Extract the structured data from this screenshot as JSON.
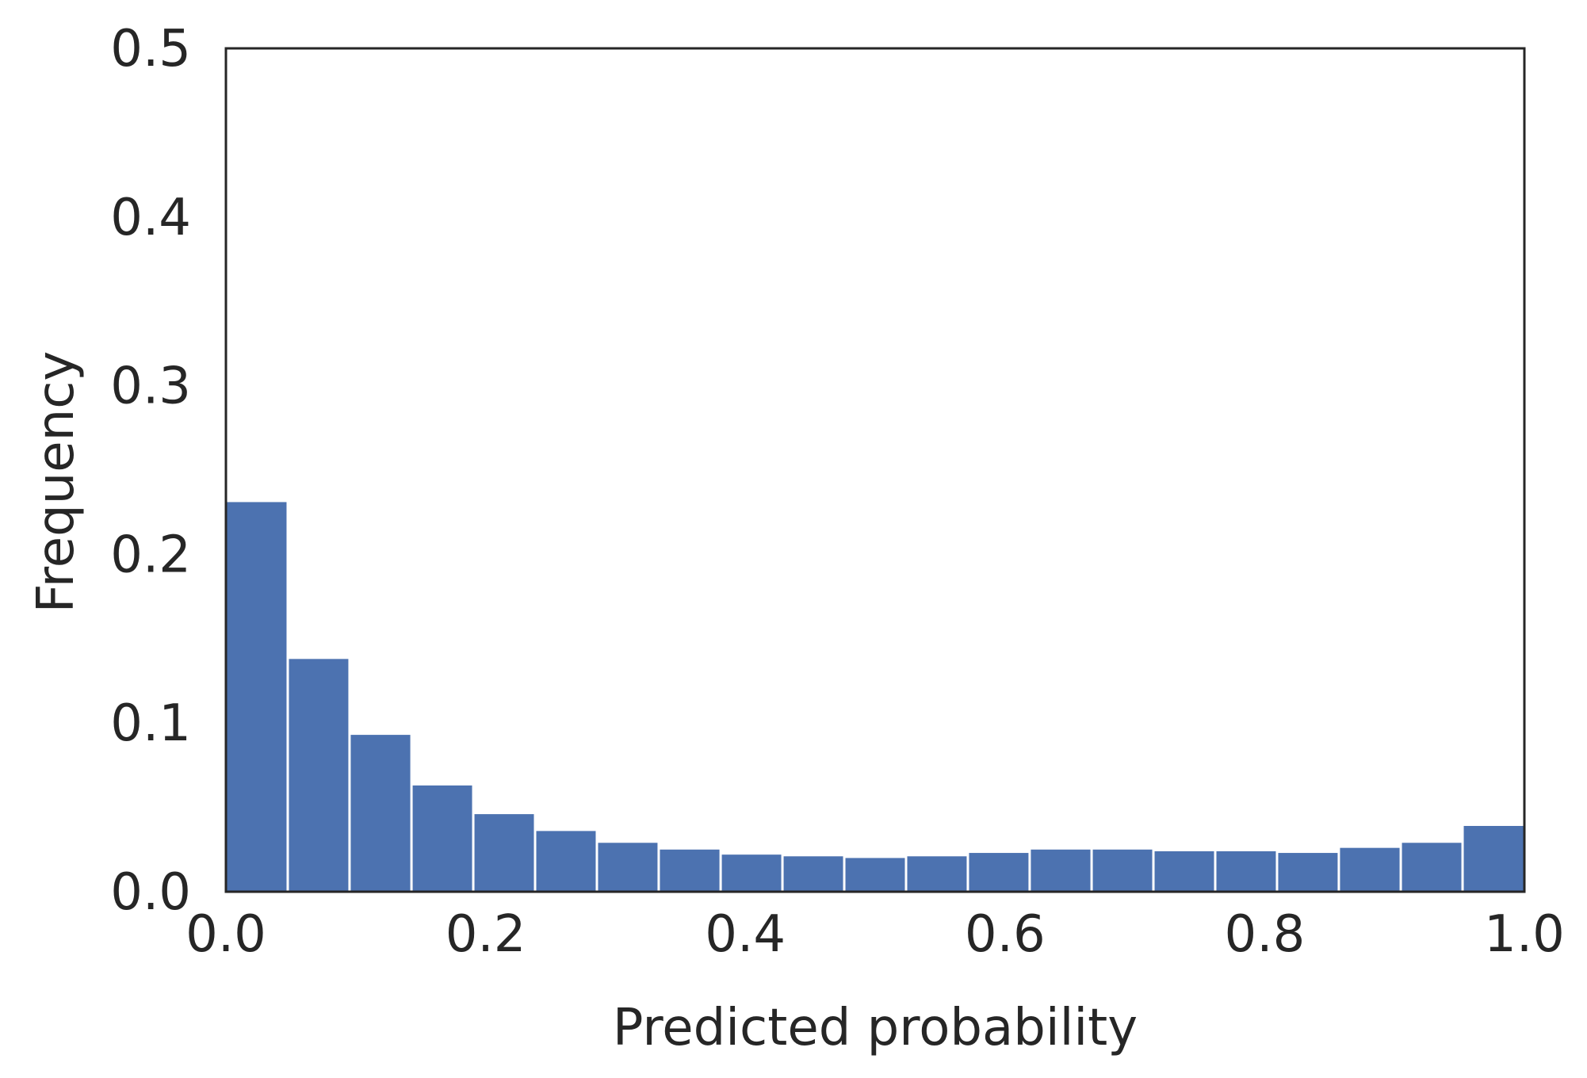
{
  "chart_data": {
    "type": "bar",
    "title": "",
    "xlabel": "Predicted probability",
    "ylabel": "Frequency",
    "xlim": [
      0.0,
      1.0
    ],
    "ylim": [
      0.0,
      0.5
    ],
    "grid": false,
    "legend": "none",
    "bar_color": "#4c72b0",
    "axis_color": "#262626",
    "bin_width": 0.0476,
    "bins": [
      0.0,
      0.0476,
      0.0952,
      0.1429,
      0.1905,
      0.2381,
      0.2857,
      0.3333,
      0.381,
      0.4286,
      0.4762,
      0.5238,
      0.5714,
      0.619,
      0.6667,
      0.7143,
      0.7619,
      0.8095,
      0.8571,
      0.9048,
      0.9524
    ],
    "values": [
      0.231,
      0.138,
      0.093,
      0.063,
      0.046,
      0.036,
      0.029,
      0.025,
      0.022,
      0.021,
      0.02,
      0.021,
      0.023,
      0.025,
      0.025,
      0.024,
      0.024,
      0.023,
      0.026,
      0.029,
      0.039
    ],
    "xticks": [
      {
        "value": 0.0,
        "label": "0.0"
      },
      {
        "value": 0.2,
        "label": "0.2"
      },
      {
        "value": 0.4,
        "label": "0.4"
      },
      {
        "value": 0.6,
        "label": "0.6"
      },
      {
        "value": 0.8,
        "label": "0.8"
      },
      {
        "value": 1.0,
        "label": "1.0"
      }
    ],
    "yticks": [
      {
        "value": 0.0,
        "label": "0.0"
      },
      {
        "value": 0.1,
        "label": "0.1"
      },
      {
        "value": 0.2,
        "label": "0.2"
      },
      {
        "value": 0.3,
        "label": "0.3"
      },
      {
        "value": 0.4,
        "label": "0.4"
      },
      {
        "value": 0.5,
        "label": "0.5"
      }
    ]
  }
}
